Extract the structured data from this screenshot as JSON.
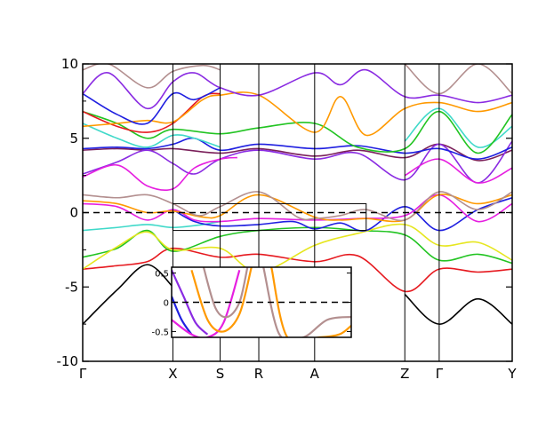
{
  "chart_data": {
    "type": "line",
    "title": "",
    "xlabel": "",
    "ylabel": "",
    "xlim": [
      0,
      10
    ],
    "ylim": [
      -10,
      10
    ],
    "grid": false,
    "x_ticks": [
      {
        "label": "Γ",
        "x": 0.0
      },
      {
        "label": "X",
        "x": 2.1
      },
      {
        "label": "S",
        "x": 3.2
      },
      {
        "label": "R",
        "x": 4.1
      },
      {
        "label": "A",
        "x": 5.4
      },
      {
        "label": "Z",
        "x": 7.5
      },
      {
        "label": "Γ",
        "x": 8.3
      },
      {
        "label": "Y",
        "x": 10.0
      }
    ],
    "y_ticks": [
      -10,
      -5,
      0,
      5,
      10
    ],
    "fermi_level": 0,
    "zoom_box": {
      "x": [
        2.1,
        6.6
      ],
      "y": [
        -1.2,
        0.6
      ]
    },
    "inset": {
      "xlim": [
        2.1,
        6.6
      ],
      "ylim": [
        -0.6,
        0.6
      ],
      "y_ticks": [
        "0.5",
        "0",
        "-0.5"
      ],
      "y_values": [
        0.5,
        0,
        -0.5
      ]
    },
    "series": [
      {
        "color": "#000000",
        "x": [
          0,
          0.8,
          1.5,
          2.1
        ],
        "y": [
          -7.5,
          -5.2,
          -3.5,
          -5.0
        ]
      },
      {
        "color": "#000000",
        "x": [
          7.5,
          8.3,
          9.2,
          10
        ],
        "y": [
          -5.5,
          -7.5,
          -5.8,
          -7.5
        ]
      },
      {
        "color": "#e6191f",
        "x": [
          0,
          0.7,
          1.5,
          2.1,
          3.2,
          4.1,
          5.4,
          6.4,
          7.5,
          8.3,
          9.2,
          10
        ],
        "y": [
          -3.8,
          -3.6,
          -3.3,
          -2.4,
          -3.0,
          -2.8,
          -3.3,
          -2.9,
          -5.3,
          -3.8,
          -4.0,
          -3.8
        ]
      },
      {
        "color": "#22c422",
        "x": [
          0,
          0.8,
          1.5,
          2.1,
          3.2,
          4.1,
          5.4,
          6.4,
          7.5,
          8.3,
          9.2,
          10
        ],
        "y": [
          -3.0,
          -2.4,
          -1.2,
          -2.6,
          -1.6,
          -1.2,
          -1.0,
          -1.2,
          -1.5,
          -3.2,
          -2.8,
          -3.4
        ]
      },
      {
        "color": "#e6e61f",
        "x": [
          0,
          0.8,
          1.5,
          2.1,
          3.2,
          4.1,
          5.4,
          6.4,
          7.5,
          8.3,
          9.2,
          10
        ],
        "y": [
          -3.8,
          -2.3,
          -1.3,
          -2.5,
          -2.4,
          -4.0,
          -2.2,
          -1.4,
          -0.8,
          -2.2,
          -2.0,
          -3.2
        ]
      },
      {
        "color": "#3fd9c9",
        "x": [
          0,
          0.8,
          1.5,
          2.1,
          2.8,
          3.2
        ],
        "y": [
          -1.2,
          -1.0,
          -0.8,
          -1.0,
          -0.8,
          -0.6
        ]
      },
      {
        "color": "#1f1fe0",
        "x": [
          2.1,
          2.6,
          3.2,
          4.1,
          4.9,
          5.4,
          6.0,
          6.6,
          7.5,
          8.3,
          9.2,
          10
        ],
        "y": [
          0.2,
          -0.6,
          -0.9,
          -0.8,
          -0.6,
          -1.1,
          -0.7,
          -1.2,
          0.4,
          -1.2,
          0.2,
          1.0
        ]
      },
      {
        "color": "#e61fe0",
        "x": [
          0,
          0.8,
          1.5,
          2.1,
          2.6,
          3.2,
          4.1,
          5.4,
          6.4,
          7.5,
          8.3,
          9.2,
          10
        ],
        "y": [
          0.6,
          0.4,
          -0.5,
          0.2,
          -0.5,
          -0.6,
          -0.4,
          -0.5,
          -0.4,
          -0.2,
          1.2,
          -0.6,
          0.6
        ]
      },
      {
        "color": "#ff9900",
        "x": [
          0,
          0.8,
          1.5,
          2.1,
          2.8,
          3.2,
          4.1,
          5.4,
          6.0,
          6.6,
          7.5,
          8.3,
          9.2,
          10
        ],
        "y": [
          0.8,
          0.6,
          0.0,
          0.1,
          -0.3,
          -0.2,
          1.2,
          -0.3,
          -0.5,
          -0.4,
          -0.5,
          1.2,
          0.6,
          1.2
        ]
      },
      {
        "color": "#b38f8f",
        "x": [
          0,
          0.8,
          1.5,
          2.1,
          2.7,
          3.2,
          4.1,
          5.0,
          5.4,
          6.0,
          6.6,
          7.5,
          8.3,
          9.2,
          10
        ],
        "y": [
          1.2,
          1.0,
          1.2,
          0.6,
          -0.2,
          0.4,
          1.4,
          -0.3,
          -0.4,
          -0.2,
          0.2,
          -0.5,
          1.4,
          0.2,
          1.4
        ]
      },
      {
        "color": "#7a1f5a",
        "x": [
          0,
          0.8,
          1.5,
          2.1,
          3.2,
          4.1,
          5.4,
          6.4,
          7.5,
          8.3,
          9.2,
          10
        ],
        "y": [
          4.2,
          4.3,
          4.2,
          4.3,
          4.0,
          4.3,
          3.8,
          4.2,
          3.7,
          4.6,
          3.5,
          4.2
        ]
      },
      {
        "color": "#8a2be2",
        "x": [
          0,
          0.8,
          1.5,
          2.1,
          2.6,
          3.2,
          4.1,
          5.4,
          6.4,
          7.5,
          8.3,
          9.2,
          10
        ],
        "y": [
          2.6,
          3.4,
          4.2,
          3.3,
          2.6,
          3.6,
          4.2,
          3.6,
          4.0,
          2.2,
          4.6,
          2.0,
          4.8
        ]
      },
      {
        "color": "#1f1fe0",
        "x": [
          0,
          0.8,
          1.5,
          2.1,
          2.6,
          3.2,
          4.1,
          5.4,
          6.4,
          7.5,
          8.3,
          9.2,
          10
        ],
        "y": [
          4.3,
          4.4,
          4.3,
          4.6,
          5.0,
          4.2,
          4.6,
          4.3,
          4.5,
          4.0,
          4.3,
          3.6,
          4.4
        ]
      },
      {
        "color": "#e61fe0",
        "x": [
          0,
          0.8,
          1.5,
          2.1,
          2.6,
          3.2,
          3.6
        ],
        "y": [
          2.4,
          3.2,
          1.8,
          1.6,
          3.0,
          3.6,
          3.7
        ]
      },
      {
        "color": "#e61fe0",
        "x": [
          7.5,
          8.3,
          9.2,
          10
        ],
        "y": [
          2.5,
          3.6,
          2.0,
          3.0
        ]
      },
      {
        "color": "#3fd9c9",
        "x": [
          0,
          0.8,
          1.5,
          2.1,
          2.6,
          3.2
        ],
        "y": [
          6.0,
          5.0,
          4.4,
          5.2,
          5.0,
          4.4
        ]
      },
      {
        "color": "#3fd9c9",
        "x": [
          7.5,
          8.3,
          9.2,
          10
        ],
        "y": [
          4.8,
          7.0,
          4.4,
          5.8
        ]
      },
      {
        "color": "#22c422",
        "x": [
          0,
          0.8,
          1.5,
          2.1,
          3.2,
          4.1,
          5.4,
          6.4,
          7.5,
          8.3,
          9.2,
          10
        ],
        "y": [
          6.8,
          6.0,
          5.0,
          5.6,
          5.3,
          5.7,
          6.0,
          4.4,
          4.3,
          6.8,
          4.0,
          6.6
        ]
      },
      {
        "color": "#e6191f",
        "x": [
          0,
          0.8,
          1.5,
          2.1,
          2.8,
          3.2
        ],
        "y": [
          6.8,
          5.8,
          5.4,
          6.0,
          7.8,
          8.0
        ]
      },
      {
        "color": "#ff9900",
        "x": [
          0,
          0.8,
          1.5,
          2.1,
          2.8,
          3.2,
          4.1,
          5.4,
          6.0,
          6.6,
          7.5,
          8.3,
          9.2,
          10
        ],
        "y": [
          5.8,
          6.0,
          6.2,
          6.1,
          7.6,
          7.9,
          7.9,
          5.4,
          7.8,
          5.2,
          7.0,
          7.4,
          6.8,
          7.4
        ]
      },
      {
        "color": "#1f1fe0",
        "x": [
          0,
          0.8,
          1.5,
          2.1,
          2.6,
          3.2
        ],
        "y": [
          8.0,
          6.6,
          6.0,
          8.0,
          7.6,
          8.4
        ]
      },
      {
        "color": "#8a2be2",
        "x": [
          0,
          0.6,
          1.5,
          2.1,
          2.6,
          3.2,
          4.1,
          5.4,
          6.0,
          6.6,
          7.5,
          8.3,
          9.2,
          10
        ],
        "y": [
          8.0,
          9.4,
          7.0,
          8.8,
          9.4,
          8.4,
          7.9,
          9.4,
          8.6,
          9.6,
          7.8,
          7.9,
          7.4,
          7.9
        ]
      },
      {
        "color": "#b38f8f",
        "x": [
          0,
          0.6,
          1.5,
          2.1,
          2.8,
          3.2
        ],
        "y": [
          9.6,
          10.0,
          8.4,
          9.5,
          9.9,
          9.6
        ]
      },
      {
        "color": "#b38f8f",
        "x": [
          7.5,
          8.3,
          9.2,
          10
        ],
        "y": [
          10.0,
          8.0,
          10.0,
          8.0
        ]
      }
    ],
    "inset_series": [
      {
        "color": "#8a2be2",
        "x": [
          2.1,
          2.4,
          2.7,
          3.0
        ],
        "y": [
          0.55,
          0.1,
          -0.35,
          -0.55
        ]
      },
      {
        "color": "#1f1fe0",
        "x": [
          2.1,
          2.35,
          2.6
        ],
        "y": [
          0.1,
          -0.3,
          -0.55
        ]
      },
      {
        "color": "#e61fe0",
        "x": [
          2.1,
          2.6,
          3.0,
          3.4,
          3.8
        ],
        "y": [
          -0.3,
          -0.55,
          -0.6,
          -0.35,
          0.55
        ]
      },
      {
        "color": "#ff9900",
        "x": [
          2.6,
          3.0,
          3.4,
          3.8,
          4.1
        ],
        "y": [
          0.55,
          -0.3,
          -0.5,
          -0.2,
          0.6
        ]
      },
      {
        "color": "#b38f8f",
        "x": [
          2.9,
          3.2,
          3.5,
          3.8,
          4.0
        ],
        "y": [
          0.6,
          -0.1,
          -0.25,
          0.0,
          0.6
        ]
      },
      {
        "color": "#b38f8f",
        "x": [
          4.4,
          4.8,
          5.4,
          6.0,
          6.6
        ],
        "y": [
          0.6,
          -0.55,
          -0.6,
          -0.3,
          -0.25
        ]
      },
      {
        "color": "#ff9900",
        "x": [
          4.6,
          5.0,
          5.8,
          6.3,
          6.6
        ],
        "y": [
          0.6,
          -0.6,
          -0.6,
          -0.55,
          -0.4
        ]
      }
    ]
  }
}
